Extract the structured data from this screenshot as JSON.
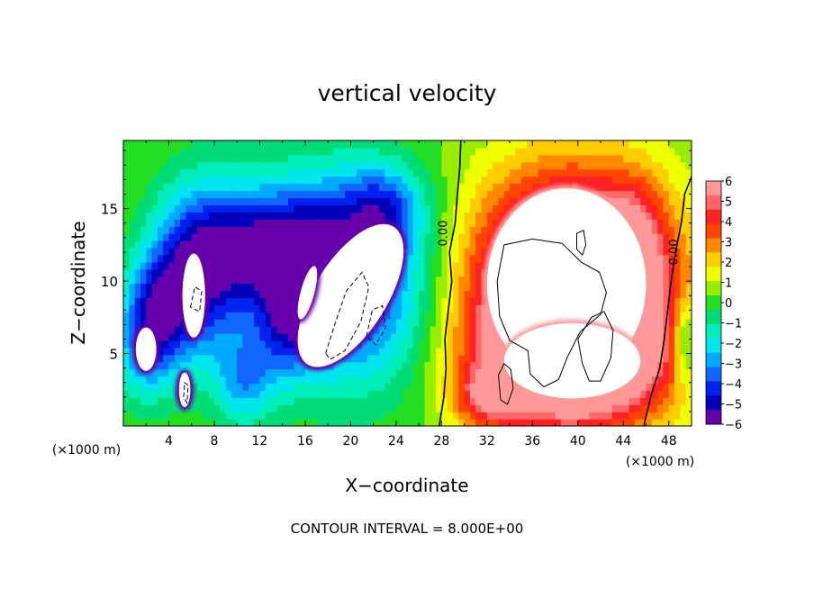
{
  "chart_data": {
    "type": "heatmap",
    "title": "vertical velocity",
    "xlabel": "X−coordinate",
    "ylabel": "Z−coordinate",
    "x_unit": "(×1000 m)",
    "x_unit_right": "(×1000 m)",
    "footer": "CONTOUR INTERVAL = 8.000E+00",
    "xlim": [
      0,
      50
    ],
    "ylim": [
      0,
      19.7
    ],
    "xticks": [
      4,
      8,
      12,
      16,
      20,
      24,
      28,
      32,
      36,
      40,
      44,
      48
    ],
    "yticks": [
      5,
      10,
      15
    ],
    "colorbar": {
      "min": -6,
      "max": 6,
      "ticks": [
        6,
        5,
        4,
        3,
        2,
        1,
        0,
        -1,
        -2,
        -3,
        -4,
        -5,
        -6
      ],
      "tick_labels": [
        "6",
        "5",
        "4",
        "3",
        "2",
        "1",
        "0",
        "−1",
        "−2",
        "−3",
        "−4",
        "−5",
        "−6"
      ],
      "colors": [
        "#ff9999",
        "#ff6666",
        "#ff2222",
        "#ff4400",
        "#ff8800",
        "#ffcc00",
        "#eeff00",
        "#99ee00",
        "#22dd22",
        "#00dd77",
        "#00eebb",
        "#00e5ee",
        "#00aaff",
        "#1166ff",
        "#0022ee",
        "#0000bb",
        "#6600aa"
      ]
    },
    "contour_labels": [
      {
        "text": "0.00",
        "x": 28.2,
        "y": 13.3
      },
      {
        "text": "0.00",
        "x": 48.5,
        "y": 12.0
      }
    ],
    "background_value": 0.3,
    "features": [
      {
        "cx": 19.5,
        "cy": 10.2,
        "rx": 7.5,
        "ry": 6.8,
        "rot": -35,
        "amp": -5.5
      },
      {
        "cx": 6.5,
        "cy": 10.5,
        "rx": 4.0,
        "ry": 6.0,
        "rot": 0,
        "amp": -5.0
      },
      {
        "cx": 12.0,
        "cy": 12.5,
        "rx": 5.5,
        "ry": 4.0,
        "rot": 0,
        "amp": -4.0
      },
      {
        "cx": 2.5,
        "cy": 7.0,
        "rx": 2.8,
        "ry": 4.5,
        "rot": -10,
        "amp": -5.0
      },
      {
        "cx": 15.0,
        "cy": 8.0,
        "rx": 3.0,
        "ry": 5.0,
        "rot": -20,
        "amp": -3.5
      },
      {
        "cx": 23.0,
        "cy": 15.0,
        "rx": 3.5,
        "ry": 3.0,
        "rot": 0,
        "amp": -3.0
      },
      {
        "cx": 39.5,
        "cy": 9.5,
        "rx": 8.5,
        "ry": 7.6,
        "rot": 0,
        "amp": 10.0
      },
      {
        "cx": 39.5,
        "cy": 4.5,
        "rx": 8.5,
        "ry": 4.5,
        "rot": 0,
        "amp": 5.0
      },
      {
        "cx": 45.0,
        "cy": 12.0,
        "rx": 2.5,
        "ry": 5.0,
        "rot": 0,
        "amp": 2.0
      },
      {
        "cx": 32.0,
        "cy": 2.0,
        "rx": 3.0,
        "ry": 2.0,
        "rot": 0,
        "amp": 3.0
      },
      {
        "cx": 49.5,
        "cy": 6.0,
        "rx": 1.2,
        "ry": 3.0,
        "rot": 0,
        "amp": -3.0
      },
      {
        "cx": 10.5,
        "cy": 3.0,
        "rx": 2.5,
        "ry": 3.0,
        "rot": 0,
        "amp": -2.5
      }
    ],
    "strong_regions": [
      {
        "kind": "down",
        "cx": 20.0,
        "cy": 9.0,
        "rx": 3.2,
        "ry": 5.6,
        "rot": -32
      },
      {
        "kind": "down",
        "cx": 6.2,
        "cy": 9.0,
        "rx": 1.0,
        "ry": 2.9,
        "rot": 0
      },
      {
        "kind": "down",
        "cx": 2.0,
        "cy": 5.3,
        "rx": 0.9,
        "ry": 1.5,
        "rot": 0
      },
      {
        "kind": "down",
        "cx": 16.2,
        "cy": 9.2,
        "rx": 0.6,
        "ry": 1.9,
        "rot": -15
      },
      {
        "kind": "down",
        "cx": 5.4,
        "cy": 2.5,
        "rx": 0.5,
        "ry": 1.2,
        "rot": 0
      },
      {
        "kind": "up",
        "cx": 39.0,
        "cy": 9.8,
        "rx": 7.0,
        "ry": 6.6,
        "rot": 0
      },
      {
        "kind": "up",
        "cx": 39.5,
        "cy": 4.5,
        "rx": 6.0,
        "ry": 2.6,
        "rot": 0
      }
    ],
    "contours": [
      {
        "value": 0,
        "style": "solid",
        "points": [
          [
            27.8,
            0
          ],
          [
            28.2,
            2
          ],
          [
            28.4,
            4
          ],
          [
            28.3,
            6
          ],
          [
            28.6,
            8
          ],
          [
            28.9,
            10
          ],
          [
            28.7,
            12
          ],
          [
            29.2,
            14
          ],
          [
            29.4,
            16
          ],
          [
            29.6,
            17.8
          ],
          [
            29.7,
            19.7
          ]
        ]
      },
      {
        "value": 0,
        "style": "solid",
        "points": [
          [
            45.8,
            0
          ],
          [
            46.4,
            2
          ],
          [
            47.2,
            4
          ],
          [
            47.6,
            6
          ],
          [
            47.9,
            8
          ],
          [
            48.2,
            10
          ],
          [
            48.6,
            12
          ],
          [
            49.1,
            14
          ],
          [
            49.4,
            16
          ],
          [
            50,
            17.2
          ]
        ]
      },
      {
        "value": 8,
        "style": "solid",
        "points": [
          [
            33.5,
            12.5
          ],
          [
            36,
            12.9
          ],
          [
            38.6,
            12.6
          ],
          [
            40.3,
            11.3
          ],
          [
            41.9,
            10.6
          ],
          [
            42.5,
            9.2
          ],
          [
            42,
            7.7
          ],
          [
            40.2,
            6.5
          ],
          [
            39.1,
            4.8
          ],
          [
            38.3,
            3.2
          ],
          [
            37,
            2.7
          ],
          [
            35.8,
            3.6
          ],
          [
            35.6,
            5.2
          ],
          [
            34,
            5.9
          ],
          [
            33.1,
            7.6
          ],
          [
            32.9,
            10
          ],
          [
            33.5,
            12.5
          ]
        ]
      },
      {
        "value": 8,
        "style": "solid",
        "points": [
          [
            40,
            6
          ],
          [
            41.2,
            7.5
          ],
          [
            42.3,
            7.9
          ],
          [
            43.1,
            6.6
          ],
          [
            42.9,
            4.7
          ],
          [
            42,
            3.1
          ],
          [
            41,
            3.1
          ],
          [
            40.4,
            4.3
          ],
          [
            40,
            6
          ]
        ]
      },
      {
        "value": 8,
        "style": "solid",
        "points": [
          [
            33,
            3.5
          ],
          [
            33.5,
            4.3
          ],
          [
            34.1,
            3.9
          ],
          [
            34.3,
            2.6
          ],
          [
            33.8,
            1.5
          ],
          [
            33.2,
            1.8
          ],
          [
            33,
            3.5
          ]
        ]
      },
      {
        "value": 8,
        "style": "solid",
        "points": [
          [
            39.9,
            13.3
          ],
          [
            40.5,
            13.5
          ],
          [
            40.7,
            12.5
          ],
          [
            40.4,
            11.8
          ],
          [
            39.9,
            12.2
          ],
          [
            39.9,
            13.3
          ]
        ]
      },
      {
        "value": -8,
        "style": "dashed",
        "points": [
          [
            17.8,
            5
          ],
          [
            18.6,
            7
          ],
          [
            19.6,
            9.3
          ],
          [
            21,
            10.6
          ],
          [
            21.6,
            9.6
          ],
          [
            20.9,
            7.2
          ],
          [
            19.5,
            5.2
          ],
          [
            18.2,
            4.6
          ],
          [
            17.8,
            5
          ]
        ]
      },
      {
        "value": -8,
        "style": "dashed",
        "points": [
          [
            21.4,
            6.2
          ],
          [
            21.9,
            8
          ],
          [
            22.8,
            8.3
          ],
          [
            23.1,
            6.8
          ],
          [
            22.2,
            5.6
          ],
          [
            21.4,
            6.2
          ]
        ]
      },
      {
        "value": -8,
        "style": "dashed",
        "points": [
          [
            5.9,
            8.2
          ],
          [
            6.3,
            9.6
          ],
          [
            6.9,
            9.3
          ],
          [
            6.7,
            7.9
          ],
          [
            5.9,
            8.2
          ]
        ]
      },
      {
        "value": -8,
        "style": "dashed",
        "points": [
          [
            5.3,
            2
          ],
          [
            5.4,
            3
          ],
          [
            5.7,
            2.8
          ],
          [
            5.6,
            1.6
          ],
          [
            5.3,
            2
          ]
        ]
      }
    ]
  }
}
